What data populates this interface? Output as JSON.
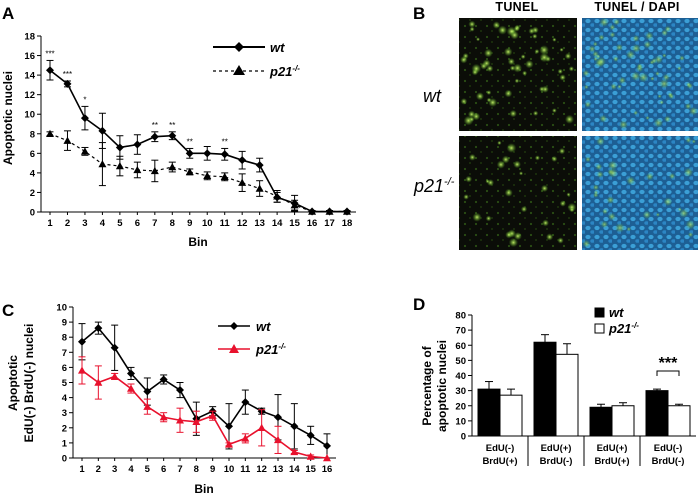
{
  "panels": {
    "a": "A",
    "b": "B",
    "c": "C",
    "d": "D"
  },
  "chart_data": [
    {
      "panel": "A",
      "type": "line",
      "xlabel": "Bin",
      "ylabel": "Apoptotic nuclei",
      "ylim": [
        0,
        18
      ],
      "yticks": [
        0,
        2,
        4,
        6,
        8,
        10,
        12,
        14,
        16,
        18
      ],
      "x": [
        1,
        2,
        3,
        4,
        5,
        6,
        7,
        8,
        9,
        10,
        11,
        12,
        13,
        14,
        15,
        16,
        17,
        18
      ],
      "legend": {
        "position": "top-right",
        "wt": "wt",
        "p21": "p21",
        "p21_sup": "-/-"
      },
      "series": [
        {
          "name": "wt",
          "line": "solid",
          "marker": "diamond",
          "values": [
            14.5,
            13.1,
            9.6,
            8.3,
            6.6,
            6.9,
            7.7,
            7.8,
            6.0,
            6.0,
            5.9,
            5.3,
            4.8,
            1.5,
            0.9,
            0.05,
            0.05,
            0.05
          ],
          "errors": [
            1.0,
            0.3,
            1.2,
            1.8,
            1.2,
            1.0,
            0.5,
            0.4,
            0.5,
            0.7,
            0.6,
            0.9,
            0.7,
            0.5,
            0.8,
            0.1,
            0.1,
            0.1
          ]
        },
        {
          "name": "p21-/-",
          "line": "dashed",
          "marker": "triangle",
          "values": [
            8.0,
            7.3,
            6.2,
            4.9,
            4.7,
            4.3,
            4.2,
            4.6,
            4.1,
            3.7,
            3.6,
            3.0,
            2.4,
            1.6,
            0.7,
            0.05,
            0.05,
            0.05
          ],
          "errors": [
            0.2,
            1.0,
            0.4,
            2.2,
            1.0,
            0.8,
            1.1,
            0.5,
            0.3,
            0.4,
            0.4,
            0.9,
            0.8,
            0.6,
            0.5,
            0.1,
            0.1,
            0.1
          ]
        }
      ],
      "significance": [
        {
          "x": 1,
          "label": "***"
        },
        {
          "x": 2,
          "label": "***"
        },
        {
          "x": 3,
          "label": "*"
        },
        {
          "x": 7,
          "label": "**"
        },
        {
          "x": 8,
          "label": "**"
        },
        {
          "x": 9,
          "label": "**"
        },
        {
          "x": 11,
          "label": "**"
        }
      ]
    },
    {
      "panel": "C",
      "type": "line",
      "xlabel": "Bin",
      "ylabel_line1": "Apoptotic",
      "ylabel_line2": "EdU(-) BrdU(-) nuclei",
      "ylim": [
        0,
        10
      ],
      "yticks": [
        0,
        1,
        2,
        3,
        4,
        5,
        6,
        7,
        8,
        9,
        10
      ],
      "x": [
        1,
        2,
        3,
        4,
        5,
        6,
        7,
        8,
        9,
        10,
        11,
        12,
        13,
        14,
        15,
        16
      ],
      "legend": {
        "position": "top-right",
        "wt": "wt",
        "p21": "p21",
        "p21_sup": "-/-"
      },
      "series": [
        {
          "name": "wt",
          "color": "#000000",
          "marker": "diamond",
          "values": [
            7.7,
            8.6,
            7.3,
            5.6,
            4.4,
            5.2,
            4.5,
            2.6,
            3.1,
            2.1,
            3.7,
            3.1,
            2.7,
            2.1,
            1.5,
            0.8
          ],
          "errors": [
            1.2,
            0.4,
            1.5,
            0.4,
            0.9,
            0.3,
            0.5,
            1.1,
            0.3,
            1.5,
            0.8,
            0.2,
            1.5,
            1.5,
            0.6,
            0.8
          ]
        },
        {
          "name": "p21-/-",
          "color": "#e8112d",
          "marker": "triangle",
          "values": [
            5.8,
            5.0,
            5.4,
            4.6,
            3.4,
            2.7,
            2.5,
            2.4,
            2.8,
            0.9,
            1.3,
            2.0,
            1.2,
            0.4,
            0.1,
            0.0
          ],
          "errors": [
            0.9,
            1.1,
            0.2,
            0.3,
            0.5,
            0.3,
            0.8,
            0.7,
            0.3,
            0.1,
            0.3,
            1.2,
            0.9,
            0.1,
            0.1,
            0.0
          ]
        }
      ]
    },
    {
      "panel": "D",
      "type": "bar",
      "ylabel_line1": "Percentage of",
      "ylabel_line2": "apoptotic nuclei",
      "ylim": [
        0,
        80
      ],
      "yticks": [
        0,
        10,
        20,
        30,
        40,
        50,
        60,
        70,
        80
      ],
      "categories": [
        {
          "line1": "EdU(-)",
          "line2": "BrdU(+)"
        },
        {
          "line1": "EdU(+)",
          "line2": "BrdU(-)"
        },
        {
          "line1": "EdU(+)",
          "line2": "BrdU(+)"
        },
        {
          "line1": "EdU(-)",
          "line2": "BrdU(-)"
        }
      ],
      "legend": {
        "position": "top-right",
        "wt": "wt",
        "p21": "p21",
        "p21_sup": "-/-"
      },
      "series": [
        {
          "name": "wt",
          "fill": "#000000",
          "values": [
            31,
            62,
            19,
            30
          ],
          "errors": [
            5,
            5,
            2,
            1
          ]
        },
        {
          "name": "p21-/-",
          "fill": "#ffffff",
          "values": [
            27,
            54,
            20,
            20
          ],
          "errors": [
            4,
            7,
            2,
            1
          ]
        }
      ],
      "significance": {
        "category_index": 3,
        "label": "***"
      }
    }
  ],
  "micrographs": {
    "col1_header": "TUNEL",
    "col2_header": "TUNEL / DAPI",
    "row1_label": "wt",
    "row2_label": "p21",
    "row2_label_sup": "-/-"
  }
}
